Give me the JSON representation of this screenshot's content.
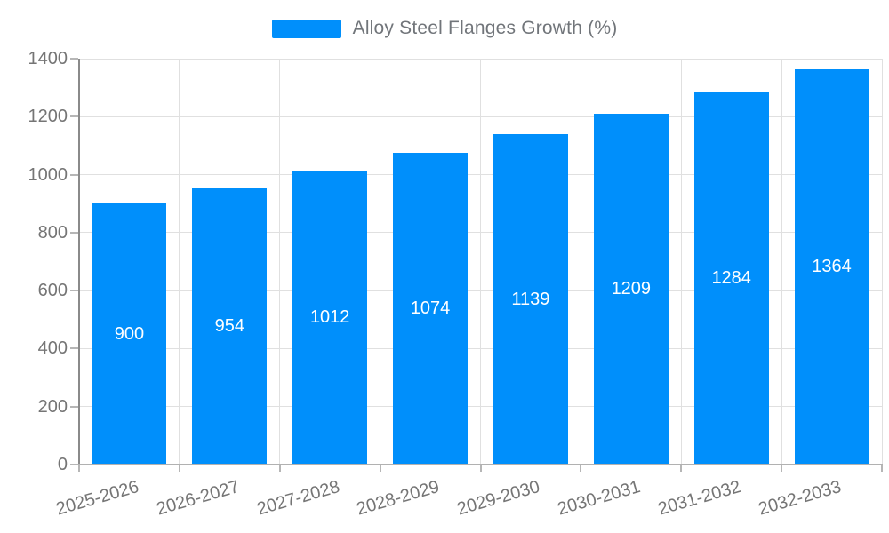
{
  "chart_data": {
    "type": "bar",
    "title": "",
    "xlabel": "",
    "ylabel": "",
    "series_name": "Alloy Steel Flanges Growth (%)",
    "categories": [
      "2025-2026",
      "2026-2027",
      "2027-2028",
      "2028-2029",
      "2029-2030",
      "2030-2031",
      "2031-2032",
      "2032-2033"
    ],
    "values": [
      900,
      954,
      1012,
      1074,
      1139,
      1209,
      1284,
      1364
    ],
    "data_labels_visible": true,
    "ylim": [
      0,
      1400
    ],
    "yticks": [
      0,
      200,
      400,
      600,
      800,
      1000,
      1200,
      1400
    ],
    "legend_position": "top-center",
    "grid": true,
    "colors": {
      "bar": "#008FFB",
      "grid": "#e0e0e0",
      "y_axis_line": "#8a8a8a",
      "x_axis_line": "#b1b1b1",
      "tick": "#b6b6b6",
      "axis_label_text": "#757575",
      "legend_text": "#71757a",
      "data_label_text": "#ffffff",
      "background": "#ffffff"
    }
  }
}
